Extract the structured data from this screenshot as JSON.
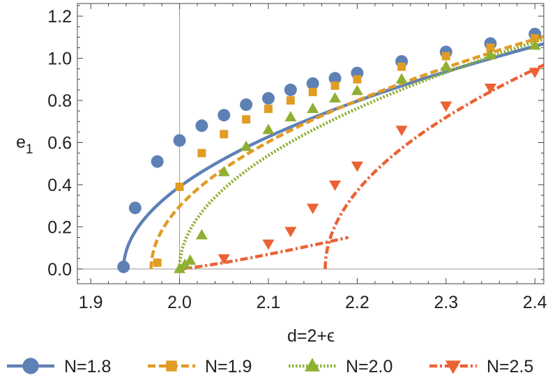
{
  "chart_data": {
    "type": "scatter",
    "title": "",
    "xlabel": "d=2+ϵ",
    "ylabel": "e",
    "ylabel_subscript": "1",
    "xlim": [
      1.885,
      2.41
    ],
    "ylim": [
      -0.07,
      1.26
    ],
    "x_ticks": [
      1.9,
      2.0,
      2.1,
      2.2,
      2.3,
      2.4
    ],
    "x_tick_labels": [
      "1.9",
      "2.0",
      "2.1",
      "2.2",
      "2.3",
      "2.4"
    ],
    "y_ticks": [
      0.0,
      0.2,
      0.4,
      0.6,
      0.8,
      1.0,
      1.2
    ],
    "y_tick_labels": [
      "0.0",
      "0.2",
      "0.4",
      "0.6",
      "0.8",
      "1.0",
      "1.2"
    ],
    "reference_lines": {
      "vertical_x": 2.0,
      "horizontal_y": 0.0
    },
    "legend_position": "bottom",
    "series": [
      {
        "name": "N=1.8",
        "color": "#5E81B5",
        "marker": "circle",
        "line_style": "solid",
        "points": [
          [
            1.937,
            0.01
          ],
          [
            1.95,
            0.29
          ],
          [
            1.975,
            0.51
          ],
          [
            2.0,
            0.61
          ],
          [
            2.025,
            0.68
          ],
          [
            2.05,
            0.73
          ],
          [
            2.075,
            0.78
          ],
          [
            2.1,
            0.81
          ],
          [
            2.125,
            0.85
          ],
          [
            2.15,
            0.88
          ],
          [
            2.175,
            0.905
          ],
          [
            2.2,
            0.93
          ],
          [
            2.25,
            0.985
          ],
          [
            2.3,
            1.03
          ],
          [
            2.35,
            1.07
          ],
          [
            2.4,
            1.115
          ]
        ],
        "curve": {
          "x0": 1.937,
          "coef": 1.5537,
          "power": 0.5,
          "xmin": 1.937,
          "xmax": 2.41
        }
      },
      {
        "name": "N=1.9",
        "color": "#E19C24",
        "marker": "square",
        "line_style": "dashed",
        "points": [
          [
            1.975,
            0.03
          ],
          [
            2.0,
            0.39
          ],
          [
            2.025,
            0.55
          ],
          [
            2.05,
            0.64
          ],
          [
            2.075,
            0.71
          ],
          [
            2.1,
            0.76
          ],
          [
            2.125,
            0.8
          ],
          [
            2.15,
            0.84
          ],
          [
            2.175,
            0.87
          ],
          [
            2.2,
            0.9
          ],
          [
            2.25,
            0.96
          ],
          [
            2.3,
            1.01
          ],
          [
            2.35,
            1.05
          ],
          [
            2.4,
            1.095
          ]
        ],
        "curve": {
          "x0": 1.968,
          "coef": 1.6594,
          "power": 0.5,
          "xmin": 1.968,
          "xmax": 2.41
        }
      },
      {
        "name": "N=2.0",
        "color": "#8FB032",
        "marker": "triangle-up",
        "line_style": "dotted",
        "points": [
          [
            2.0,
            0.0
          ],
          [
            2.006,
            0.02
          ],
          [
            2.012,
            0.04
          ],
          [
            2.025,
            0.16
          ],
          [
            2.05,
            0.46
          ],
          [
            2.075,
            0.58
          ],
          [
            2.1,
            0.66
          ],
          [
            2.125,
            0.72
          ],
          [
            2.15,
            0.76
          ],
          [
            2.175,
            0.81
          ],
          [
            2.2,
            0.845
          ],
          [
            2.25,
            0.9
          ],
          [
            2.3,
            0.96
          ],
          [
            2.35,
            1.015
          ],
          [
            2.4,
            1.06
          ]
        ],
        "curve": {
          "x0": 2.0,
          "coef": 1.7031,
          "power": 0.5,
          "xmin": 2.0,
          "xmax": 2.41
        }
      },
      {
        "name": "N=2.5",
        "color": "#EB6235",
        "marker": "triangle-down",
        "line_style": "dashdot",
        "points": [
          [
            2.05,
            0.05
          ],
          [
            2.1,
            0.12
          ],
          [
            2.125,
            0.18
          ],
          [
            2.15,
            0.29
          ],
          [
            2.175,
            0.4
          ],
          [
            2.2,
            0.49
          ],
          [
            2.25,
            0.66
          ],
          [
            2.3,
            0.775
          ],
          [
            2.35,
            0.86
          ],
          [
            2.4,
            0.935
          ]
        ],
        "curve_lower": {
          "x0": 2.0,
          "coef": 1.1,
          "power": 1.2,
          "xmin": 2.0,
          "xmax": 2.19
        },
        "curve": {
          "x0": 2.164,
          "coef": 1.9515,
          "power": 0.5,
          "xmin": 2.164,
          "xmax": 2.41
        }
      }
    ]
  }
}
